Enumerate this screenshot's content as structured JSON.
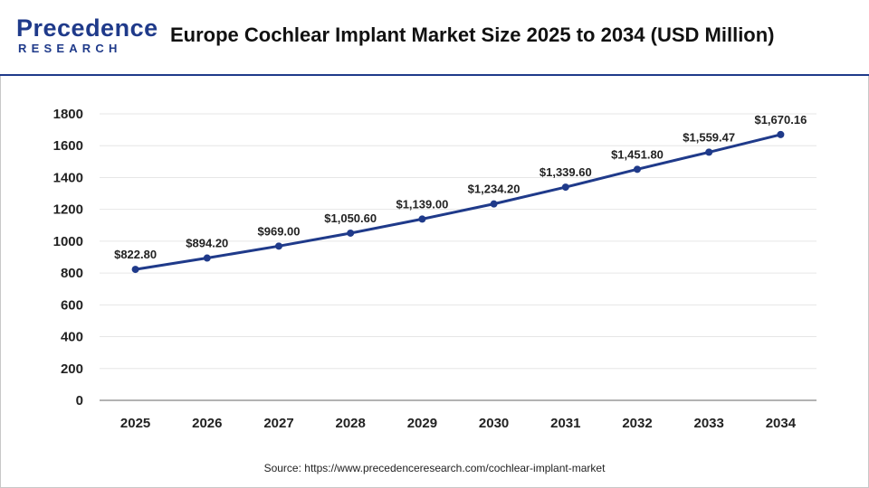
{
  "header": {
    "logo_main": "Precedence",
    "logo_sub": "RESEARCH",
    "title": "Europe Cochlear Implant Market Size 2025 to 2034 (USD Million)"
  },
  "source": "Source: https://www.precedenceresearch.com/cochlear-implant-market",
  "colors": {
    "line": "#1f3a8a",
    "grid": "#e6e6e6",
    "axis": "#9a9a9a",
    "brand": "#1f3a8a"
  },
  "chart_data": {
    "type": "line",
    "title": "Europe Cochlear Implant Market Size 2025 to 2034 (USD Million)",
    "xlabel": "",
    "ylabel": "",
    "categories": [
      "2025",
      "2026",
      "2027",
      "2028",
      "2029",
      "2030",
      "2031",
      "2032",
      "2033",
      "2034"
    ],
    "values": [
      822.8,
      894.2,
      969.0,
      1050.6,
      1139.0,
      1234.2,
      1339.6,
      1451.8,
      1559.47,
      1670.16
    ],
    "data_labels": [
      "$822.80",
      "$894.20",
      "$969.00",
      "$1,050.60",
      "$1,139.00",
      "$1,234.20",
      "$1,339.60",
      "$1,451.80",
      "$1,559.47",
      "$1,670.16"
    ],
    "ylim": [
      0,
      1800
    ],
    "yticks": [
      0,
      200,
      400,
      600,
      800,
      1000,
      1200,
      1400,
      1600,
      1800
    ],
    "grid": true,
    "legend": "none"
  }
}
